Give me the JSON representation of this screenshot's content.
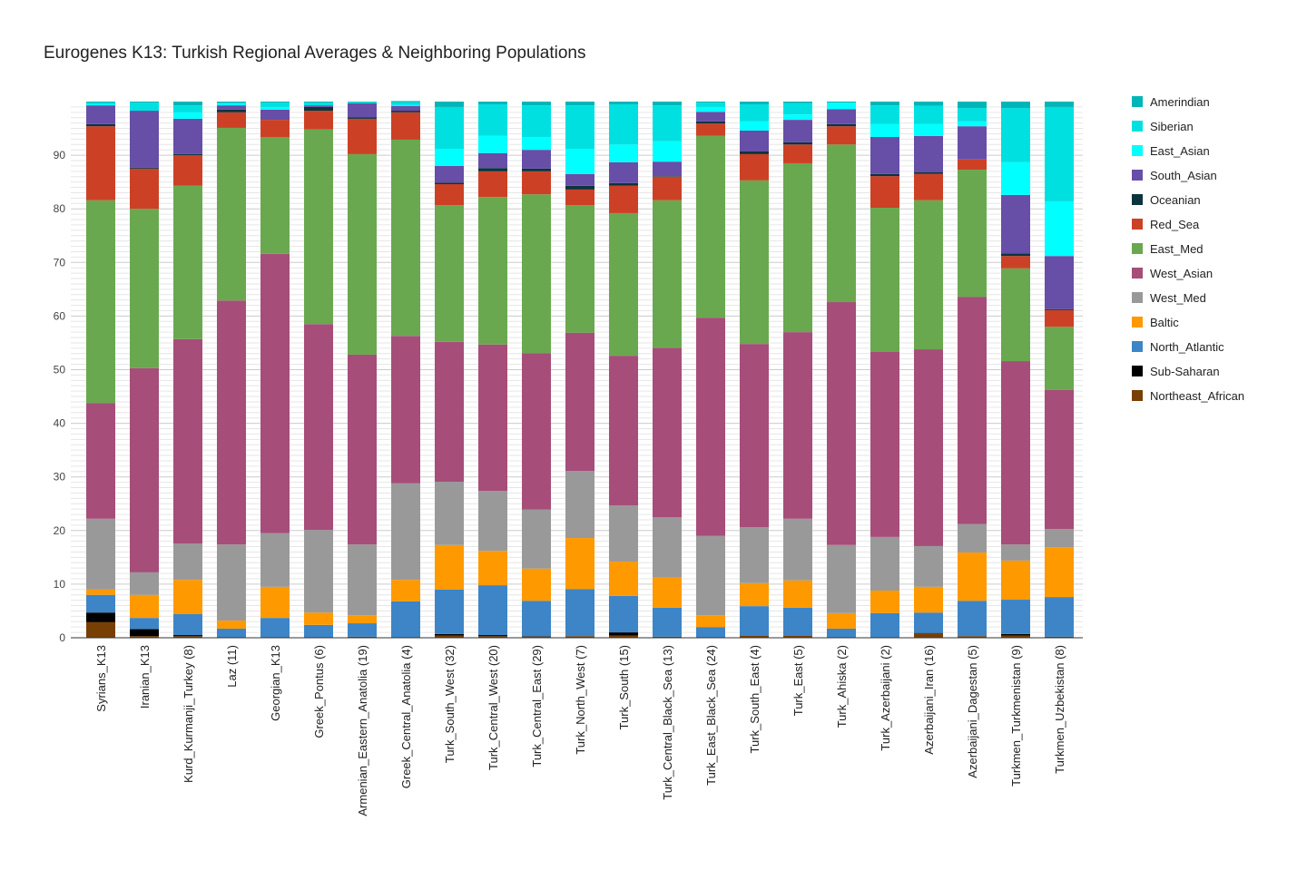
{
  "chart_data": {
    "type": "bar",
    "stacked": true,
    "title": "Eurogenes K13: Turkish Regional Averages & Neighboring Populations",
    "xlabel": "",
    "ylabel": "",
    "ylim": [
      0,
      100
    ],
    "yticks": [
      0,
      10,
      20,
      30,
      40,
      50,
      60,
      70,
      80,
      90
    ],
    "grid": true,
    "legend_position": "right",
    "categories": [
      "Syrians_K13",
      "Iranian_K13",
      "Kurd_Kurmanji_Turkey (8)",
      "Laz (11)",
      "Georgian_K13",
      "Greek_Pontus (6)",
      "Armenian_Eastern_Anatolia (19)",
      "Greek_Central_Anatolia (4)",
      "Turk_South_West (32)",
      "Turk_Central_West (20)",
      "Turk_Central_East (29)",
      "Turk_North_West (7)",
      "Turk_South (15)",
      "Turk_Central_Black_Sea (13)",
      "Turk_East_Black_Sea (24)",
      "Turk_South_East (4)",
      "Turk_East (5)",
      "Turk_Ahiska (2)",
      "Turk_Azerbaijani (2)",
      "Azerbaijani_Iran (16)",
      "Azerbaijani_Dagestan (5)",
      "Turkmen_Turkmenistan (9)",
      "Turkmen_Uzbekistan (8)"
    ],
    "series": [
      {
        "name": "Northeast_African",
        "color": "#783f04",
        "values": [
          2.9,
          0.3,
          0.3,
          0,
          0,
          0,
          0.2,
          0,
          0.4,
          0.3,
          0.2,
          0.3,
          0.4,
          0.2,
          0,
          0.4,
          0.4,
          0,
          0,
          0.8,
          0.3,
          0.4,
          0.2
        ]
      },
      {
        "name": "Sub-Saharan",
        "color": "#000000",
        "values": [
          1.8,
          1.3,
          0.2,
          0,
          0,
          0,
          0,
          0,
          0.3,
          0.2,
          0.1,
          0,
          0.6,
          0,
          0,
          0,
          0,
          0,
          0,
          0.1,
          0,
          0.3,
          0
        ]
      },
      {
        "name": "North_Atlantic",
        "color": "#3d85c6",
        "values": [
          3.3,
          2.1,
          3.9,
          1.7,
          3.7,
          2.4,
          2.5,
          6.8,
          8.3,
          9.3,
          6.6,
          8.8,
          6.8,
          5.4,
          2.0,
          5.5,
          5.2,
          1.7,
          4.6,
          3.8,
          6.6,
          6.4,
          7.4
        ]
      },
      {
        "name": "Baltic",
        "color": "#ff9900",
        "values": [
          1.0,
          4.3,
          6.4,
          1.5,
          5.8,
          2.3,
          1.5,
          4.0,
          8.3,
          6.4,
          6.0,
          9.5,
          6.4,
          5.6,
          2.2,
          4.3,
          5.1,
          2.9,
          4.2,
          4.8,
          9.0,
          7.3,
          9.3
        ]
      },
      {
        "name": "West_Med",
        "color": "#999999",
        "values": [
          13.2,
          4.2,
          6.8,
          14.2,
          10.0,
          15.4,
          13.2,
          18.0,
          11.8,
          11.2,
          11.0,
          12.5,
          10.5,
          11.3,
          14.8,
          10.4,
          11.5,
          12.7,
          10.0,
          7.6,
          5.3,
          3.0,
          3.4
        ]
      },
      {
        "name": "West_Asian",
        "color": "#a64d79",
        "values": [
          21.6,
          38.1,
          38.1,
          45.5,
          52.1,
          38.4,
          35.4,
          27.5,
          26.1,
          27.3,
          29.2,
          25.8,
          27.9,
          31.6,
          40.7,
          34.2,
          34.8,
          45.3,
          34.5,
          36.7,
          42.4,
          34.2,
          25.9
        ]
      },
      {
        "name": "East_Med",
        "color": "#6aa84f",
        "values": [
          37.8,
          29.7,
          28.6,
          32.2,
          21.8,
          36.3,
          37.4,
          36.6,
          25.5,
          27.5,
          29.6,
          23.8,
          26.6,
          27.5,
          33.9,
          30.5,
          31.5,
          29.4,
          26.9,
          27.8,
          23.7,
          17.3,
          11.8
        ]
      },
      {
        "name": "Red_Sea",
        "color": "#cc4125",
        "values": [
          13.8,
          7.5,
          5.7,
          2.9,
          3.2,
          3.5,
          6.6,
          5.1,
          3.9,
          4.8,
          4.3,
          2.9,
          5.1,
          4.4,
          2.3,
          4.9,
          3.5,
          3.4,
          5.9,
          4.9,
          1.9,
          2.3,
          3.1
        ]
      },
      {
        "name": "Oceanian",
        "color": "#0c343d",
        "values": [
          0.4,
          0.2,
          0.2,
          0.5,
          0,
          0.7,
          0.3,
          0.3,
          0.3,
          0.6,
          0.5,
          0.7,
          0.5,
          0.1,
          0.4,
          0.5,
          0.4,
          0.4,
          0.4,
          0.3,
          0,
          0.5,
          0.2
        ]
      },
      {
        "name": "South_Asian",
        "color": "#674ea7",
        "values": [
          3.5,
          10.6,
          6.6,
          0.8,
          1.9,
          0.3,
          2.6,
          0.9,
          3.1,
          2.8,
          3.5,
          2.2,
          3.9,
          2.7,
          1.8,
          3.9,
          4.2,
          2.8,
          6.9,
          6.8,
          6.2,
          10.9,
          9.9
        ]
      },
      {
        "name": "East_Asian",
        "color": "#00ffff",
        "values": [
          0.2,
          0,
          1.2,
          0.3,
          0.5,
          0,
          0,
          0.2,
          3.2,
          3.2,
          2.4,
          4.7,
          3.3,
          3.8,
          0.9,
          1.7,
          1.0,
          1.2,
          2.4,
          2.2,
          0.9,
          6.1,
          10.2
        ]
      },
      {
        "name": "Siberian",
        "color": "#00e0e0",
        "values": [
          0.3,
          1.5,
          1.3,
          0.2,
          0.8,
          0.5,
          0.2,
          0.5,
          7.8,
          5.9,
          5.9,
          8.1,
          7.5,
          6.7,
          0.8,
          3.2,
          2.1,
          0,
          3.5,
          3.4,
          2.5,
          10.1,
          17.6
        ]
      },
      {
        "name": "Amerindian",
        "color": "#00b5b8",
        "values": [
          0.2,
          0.2,
          0.7,
          0.2,
          0.2,
          0.2,
          0.1,
          0.2,
          1.0,
          0.5,
          0.7,
          0.7,
          0.5,
          0.7,
          0.2,
          0.5,
          0.3,
          0.2,
          0.7,
          0.8,
          1.2,
          1.2,
          1.0
        ]
      }
    ]
  }
}
